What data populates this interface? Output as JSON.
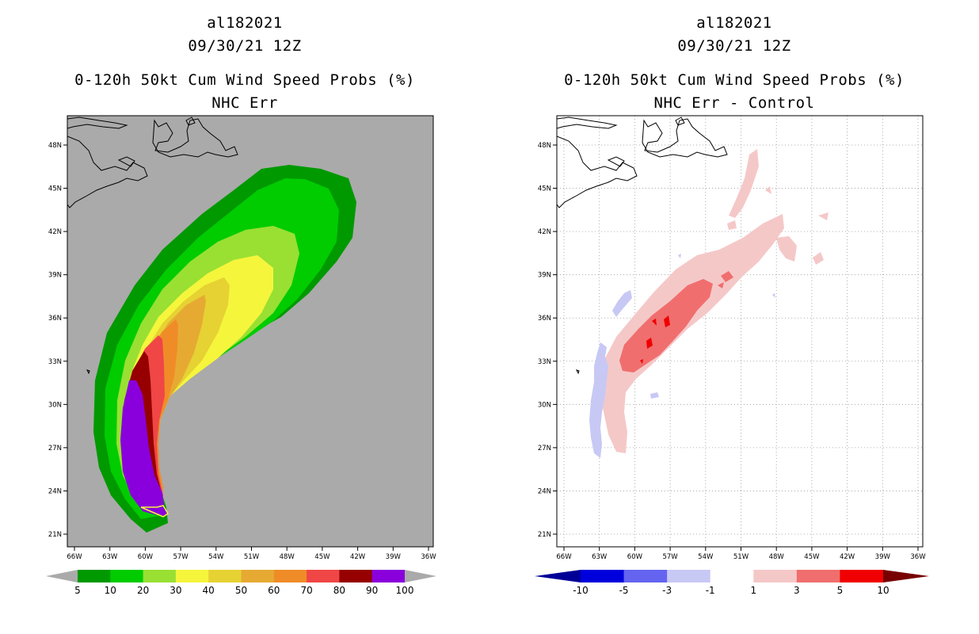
{
  "chart_data": [
    {
      "type": "heatmap",
      "storm_id": "al182021",
      "datetime": "09/30/21 12Z",
      "title": "0-120h 50kt Cum Wind Speed Probs (%)",
      "subtitle": "NHC Err",
      "x_ticks": [
        "66W",
        "63W",
        "60W",
        "57W",
        "54W",
        "51W",
        "48W",
        "45W",
        "42W",
        "39W",
        "36W"
      ],
      "y_ticks": [
        "48N",
        "45N",
        "42N",
        "39N",
        "36N",
        "33N",
        "30N",
        "27N",
        "24N",
        "21N"
      ],
      "xlim": [
        -66,
        -36
      ],
      "ylim": [
        20,
        50
      ],
      "background": "#aaaaaa",
      "colorbar": {
        "labels": [
          "5",
          "10",
          "20",
          "30",
          "40",
          "50",
          "60",
          "70",
          "80",
          "90",
          "100"
        ],
        "colors": [
          "#009900",
          "#00cc00",
          "#99e033",
          "#f5f53c",
          "#e6d233",
          "#e6aa33",
          "#f08c28",
          "#f04646",
          "#960000",
          "#8a00dc"
        ]
      }
    },
    {
      "type": "heatmap",
      "storm_id": "al182021",
      "datetime": "09/30/21 12Z",
      "title": "0-120h 50kt Cum Wind Speed Probs (%)",
      "subtitle": "NHC Err - Control",
      "x_ticks": [
        "66W",
        "63W",
        "60W",
        "57W",
        "54W",
        "51W",
        "48W",
        "45W",
        "42W",
        "39W",
        "36W"
      ],
      "y_ticks": [
        "48N",
        "45N",
        "42N",
        "39N",
        "36N",
        "33N",
        "30N",
        "27N",
        "24N",
        "21N"
      ],
      "xlim": [
        -66,
        -36
      ],
      "ylim": [
        20,
        50
      ],
      "grid": true,
      "background": "#ffffff",
      "colorbar": {
        "labels": [
          "-10",
          "-5",
          "-3",
          "-1",
          "1",
          "3",
          "5",
          "10"
        ],
        "colors": [
          "#0000dc",
          "#6464f0",
          "#c8c8f5",
          "#ffffff",
          "#f5c8c8",
          "#f06e6e",
          "#f00000"
        ]
      }
    }
  ]
}
